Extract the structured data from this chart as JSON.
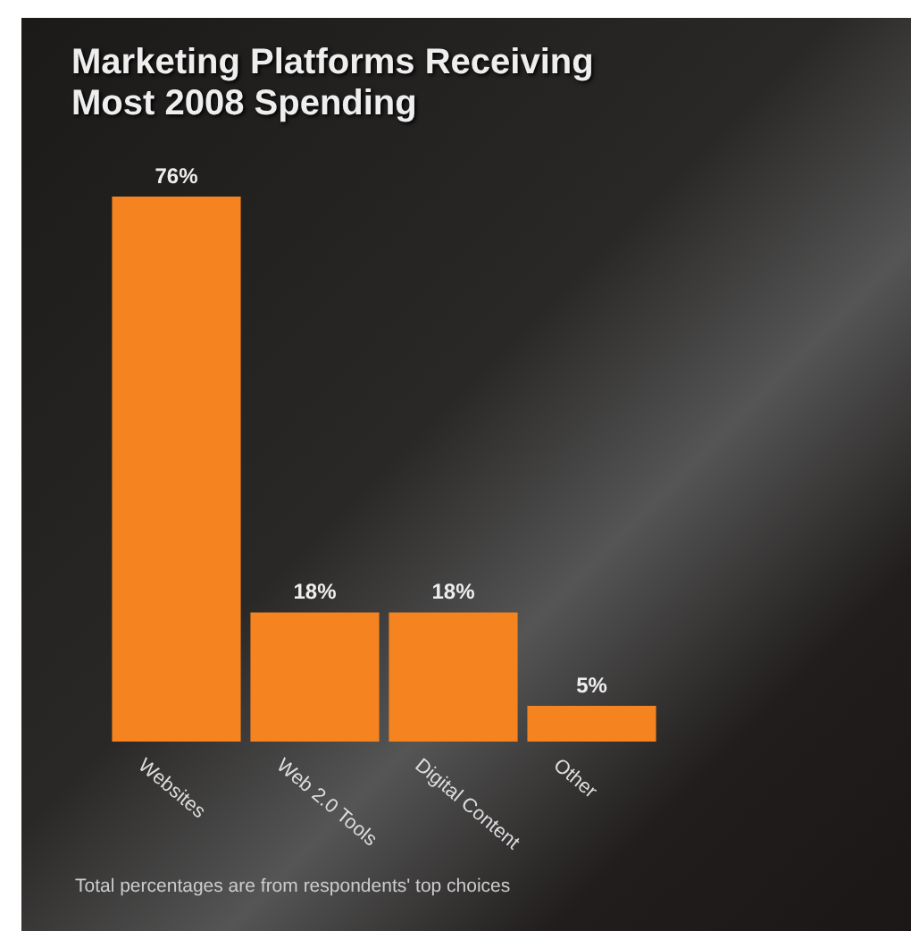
{
  "chart_data": {
    "type": "bar",
    "title": "Marketing Platforms Receiving Most 2008 Spending",
    "categories": [
      "Websites",
      "Web 2.0 Tools",
      "Digital Content",
      "Other"
    ],
    "values": [
      76,
      18,
      18,
      5
    ],
    "value_labels": [
      "76%",
      "18%",
      "18%",
      "5%"
    ],
    "color": "#f5831f",
    "annotations": [
      "Total percentages are from respondents' top choices"
    ]
  }
}
